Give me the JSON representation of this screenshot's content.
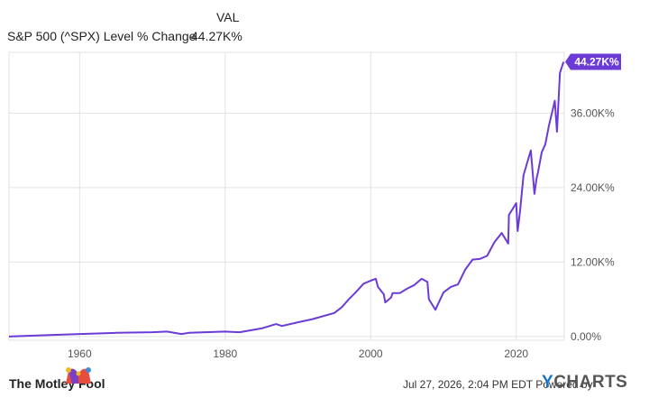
{
  "legend": {
    "header": "VAL",
    "series_label": "S&P 500 (^SPX) Level % Change",
    "series_value": "44.27K%"
  },
  "colors": {
    "line": "#6c3bd6",
    "grid": "#e3e3e3",
    "badge": "#6c3bd6"
  },
  "footer": {
    "brand": "The Motley Fool",
    "timestamp": "Jul 27, 2026, 2:04 PM EDT",
    "powered_by": "Powered by",
    "provider": "YCHARTS",
    "provider_icon": "ycharts-logo-icon",
    "brand_icon": "jester-cap-icon"
  },
  "chart_data": {
    "type": "line",
    "title": "",
    "xlabel": "",
    "ylabel": "",
    "x_ticks": [
      "1960",
      "1980",
      "2000",
      "2020"
    ],
    "y_ticks": [
      "0.00%",
      "12.00K%",
      "24.00K%",
      "36.00K%"
    ],
    "xlim": [
      1950.3,
      2026.6
    ],
    "ylim": [
      -600,
      45800
    ],
    "last_value_label": "44.27K%",
    "grid": true,
    "series": [
      {
        "name": "S&P 500 (^SPX) Level % Change",
        "x": [
          1950.3,
          1955,
          1960,
          1965,
          1970,
          1972,
          1974,
          1975,
          1980,
          1982,
          1985,
          1987,
          1987.8,
          1990,
          1992,
          1995,
          1996,
          1997,
          1998,
          1999,
          2000,
          2000.7,
          2001,
          2001.8,
          2002,
          2002.8,
          2003,
          2004,
          2005,
          2006,
          2007,
          2007.8,
          2008,
          2008.9,
          2009.2,
          2010,
          2011,
          2012,
          2013,
          2014,
          2015,
          2016,
          2017,
          2018,
          2018.9,
          2019,
          2020,
          2020.2,
          2020.5,
          2021,
          2022,
          2022.5,
          2022.8,
          2023,
          2023.5,
          2024,
          2024.5,
          2025,
          2025.3,
          2025.6,
          2026,
          2026.5
        ],
        "y": [
          0,
          200,
          400,
          600,
          700,
          800,
          400,
          600,
          800,
          700,
          1300,
          2000,
          1700,
          2300,
          2800,
          3800,
          4700,
          6000,
          7200,
          8500,
          9000,
          9300,
          8000,
          6800,
          5500,
          6300,
          7000,
          7000,
          7700,
          8300,
          9300,
          8800,
          6000,
          4300,
          5100,
          7100,
          8000,
          8400,
          10800,
          12400,
          12500,
          13000,
          15200,
          16700,
          15000,
          19600,
          21500,
          17000,
          20000,
          26000,
          30000,
          23000,
          25500,
          26500,
          29700,
          31000,
          34000,
          36500,
          38000,
          33000,
          42500,
          44270
        ]
      }
    ]
  }
}
